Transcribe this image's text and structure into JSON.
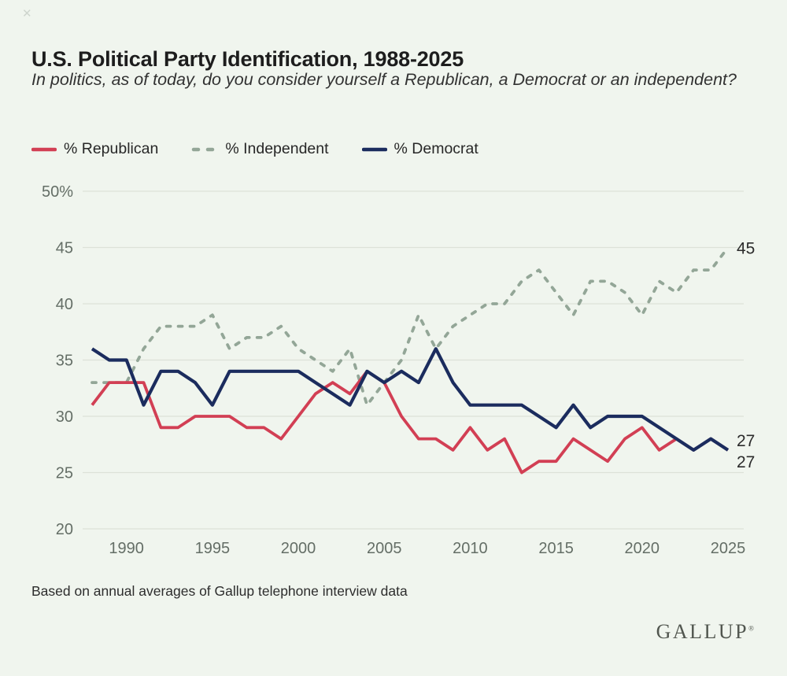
{
  "page": {
    "background": "#f0f5ee",
    "close_icon": "✕"
  },
  "header": {
    "title": "U.S. Political Party Identification, 1988-2025",
    "subtitle": "In politics, as of today, do you consider yourself a Republican, a Democrat or an independent?"
  },
  "legend": [
    {
      "label": "% Republican",
      "color": "#d23f54",
      "style": "solid"
    },
    {
      "label": "% Independent",
      "color": "#93a697",
      "style": "dashed"
    },
    {
      "label": "% Democrat",
      "color": "#1b2c5e",
      "style": "solid"
    }
  ],
  "chart_data": {
    "type": "line",
    "title": "U.S. Political Party Identification, 1988-2025",
    "xlabel": "",
    "ylabel": "",
    "x": [
      1988,
      1989,
      1990,
      1991,
      1992,
      1993,
      1994,
      1995,
      1996,
      1997,
      1998,
      1999,
      2000,
      2001,
      2002,
      2003,
      2004,
      2005,
      2006,
      2007,
      2008,
      2009,
      2010,
      2011,
      2012,
      2013,
      2014,
      2015,
      2016,
      2017,
      2018,
      2019,
      2020,
      2021,
      2022,
      2023,
      2024,
      2025
    ],
    "series": [
      {
        "name": "% Republican",
        "color": "#d23f54",
        "style": "solid",
        "values": [
          31,
          33,
          33,
          33,
          29,
          29,
          30,
          30,
          30,
          29,
          29,
          28,
          30,
          32,
          33,
          32,
          34,
          33,
          30,
          28,
          28,
          27,
          29,
          27,
          28,
          25,
          26,
          26,
          28,
          27,
          26,
          28,
          29,
          27,
          28,
          27,
          28,
          27
        ]
      },
      {
        "name": "% Independent",
        "color": "#93a697",
        "style": "dashed",
        "values": [
          33,
          33,
          33,
          36,
          38,
          38,
          38,
          39,
          36,
          37,
          37,
          38,
          36,
          35,
          34,
          36,
          31,
          33,
          35,
          39,
          36,
          38,
          39,
          40,
          40,
          42,
          43,
          41,
          39,
          42,
          42,
          41,
          39,
          42,
          41,
          43,
          43,
          45
        ]
      },
      {
        "name": "% Democrat",
        "color": "#1b2c5e",
        "style": "solid",
        "values": [
          36,
          35,
          35,
          31,
          34,
          34,
          33,
          31,
          34,
          34,
          34,
          34,
          34,
          33,
          32,
          31,
          34,
          33,
          34,
          33,
          36,
          33,
          31,
          31,
          31,
          31,
          30,
          29,
          31,
          29,
          30,
          30,
          30,
          29,
          28,
          27,
          28,
          27
        ]
      }
    ],
    "ylim": [
      20,
      50
    ],
    "yticks": [
      20,
      25,
      30,
      35,
      40,
      45,
      50
    ],
    "ytick_labels": [
      "20",
      "25",
      "30",
      "35",
      "40",
      "45",
      "50%"
    ],
    "xticks": [
      1990,
      1995,
      2000,
      2005,
      2010,
      2015,
      2020,
      2025
    ],
    "grid": "horizontal",
    "legend_position": "top-left",
    "end_labels": [
      {
        "text": "45",
        "series": 1,
        "dy": 8
      },
      {
        "text": "27",
        "series": 2,
        "dy": -5
      },
      {
        "text": "27",
        "series": 0,
        "dy": 22
      }
    ]
  },
  "footer": {
    "note": "Based on annual averages of Gallup telephone interview data",
    "brand": "GALLUP",
    "brand_mark": "®"
  }
}
